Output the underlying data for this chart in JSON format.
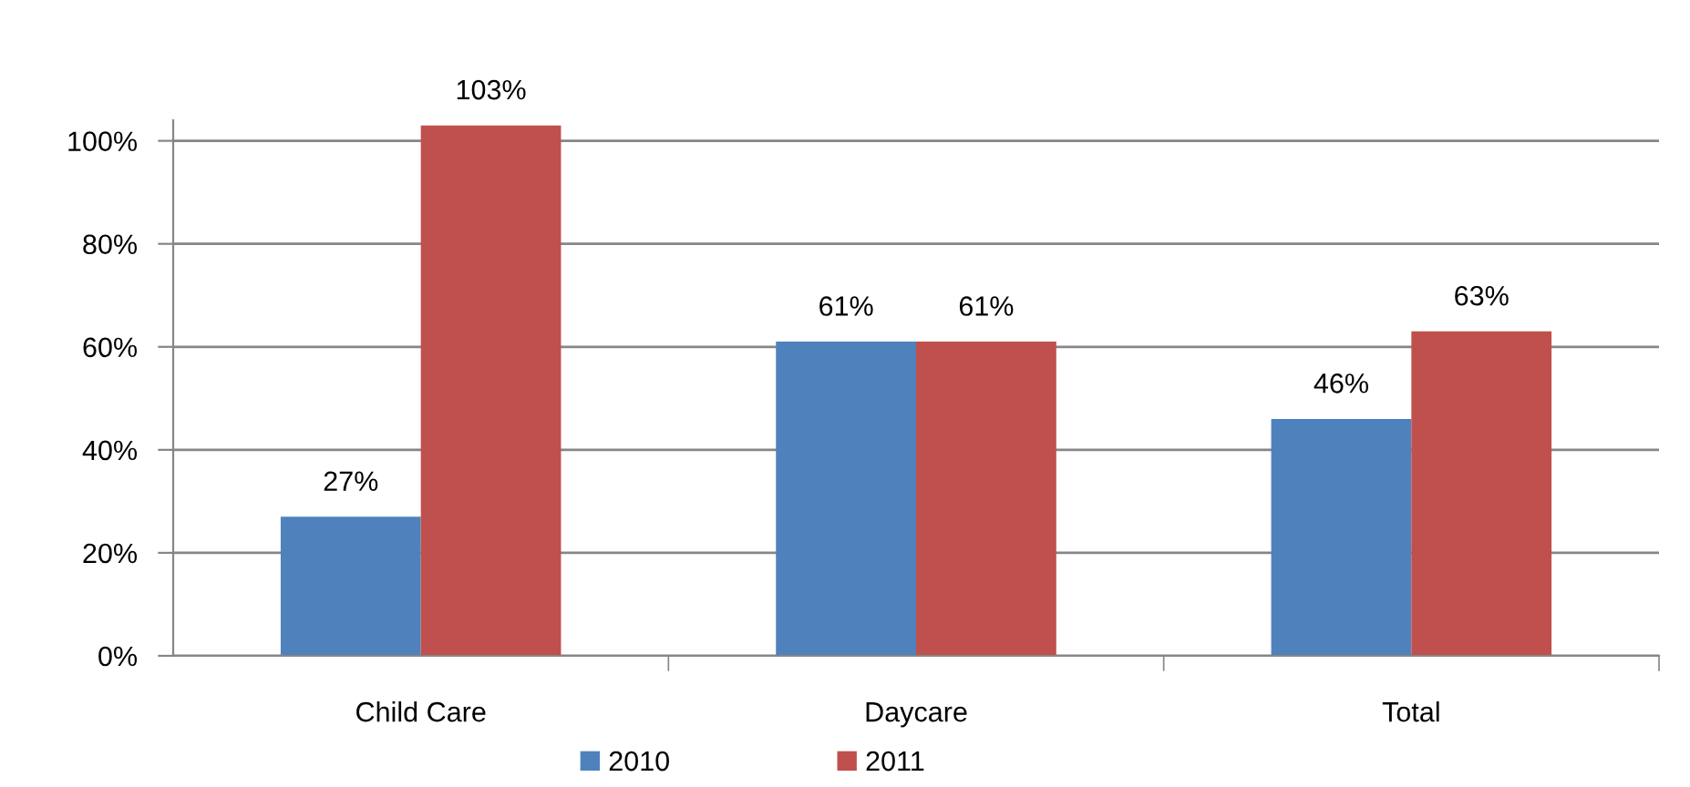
{
  "chart_data": {
    "type": "bar",
    "categories": [
      "Child Care",
      "Daycare",
      "Total"
    ],
    "series": [
      {
        "name": "2010",
        "color": "#4f81bd",
        "values": [
          27,
          61,
          46
        ],
        "value_labels": [
          "27%",
          "61%",
          "46%"
        ]
      },
      {
        "name": "2011",
        "color": "#c0504d",
        "values": [
          103,
          61,
          63
        ],
        "value_labels": [
          "103%",
          "61%",
          "63%"
        ]
      }
    ],
    "ylim": [
      0,
      104
    ],
    "yticks": [
      {
        "value": 0,
        "label": "0%"
      },
      {
        "value": 20,
        "label": "20%"
      },
      {
        "value": 40,
        "label": "40%"
      },
      {
        "value": 60,
        "label": "60%"
      },
      {
        "value": 80,
        "label": "80%"
      },
      {
        "value": 100,
        "label": "100%"
      }
    ],
    "grid": "y",
    "legend": "bottom"
  }
}
